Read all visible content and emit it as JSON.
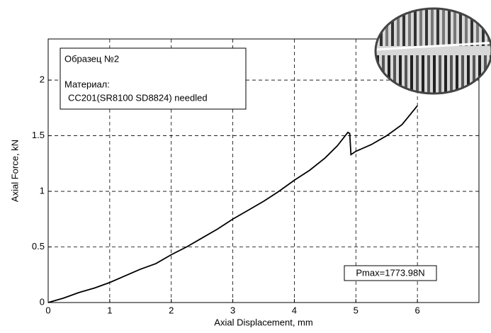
{
  "chart_data": {
    "type": "line",
    "x_label": "Axial Displacement, mm",
    "y_label": "Axial Force, kN",
    "sample_box": [
      "Образец №2",
      "Материал:",
      "CC201(SR8100 SD8824) needled"
    ],
    "pmax_label": "Pmax=1773.98N",
    "x": [
      0,
      0.25,
      0.5,
      0.75,
      1,
      1.25,
      1.5,
      1.75,
      2,
      2.25,
      2.5,
      2.75,
      3,
      3.25,
      3.5,
      3.75,
      4,
      4.25,
      4.5,
      4.7,
      4.87,
      4.9,
      4.92,
      5,
      5.25,
      5.5,
      5.75,
      6
    ],
    "series": [
      {
        "name": "Образец №2",
        "color": "#000000",
        "values": [
          0,
          0.04,
          0.09,
          0.13,
          0.18,
          0.24,
          0.3,
          0.35,
          0.43,
          0.5,
          0.58,
          0.66,
          0.75,
          0.83,
          0.91,
          1.0,
          1.1,
          1.19,
          1.3,
          1.41,
          1.53,
          1.52,
          1.33,
          1.36,
          1.42,
          1.5,
          1.6,
          1.77
        ]
      }
    ],
    "xlim": [
      0,
      7
    ],
    "ylim": [
      0,
      2.37
    ],
    "xticks": [
      0,
      1,
      2,
      3,
      4,
      5,
      6
    ],
    "yticks": [
      0,
      0.5,
      1,
      1.5,
      2
    ],
    "grid": true
  }
}
